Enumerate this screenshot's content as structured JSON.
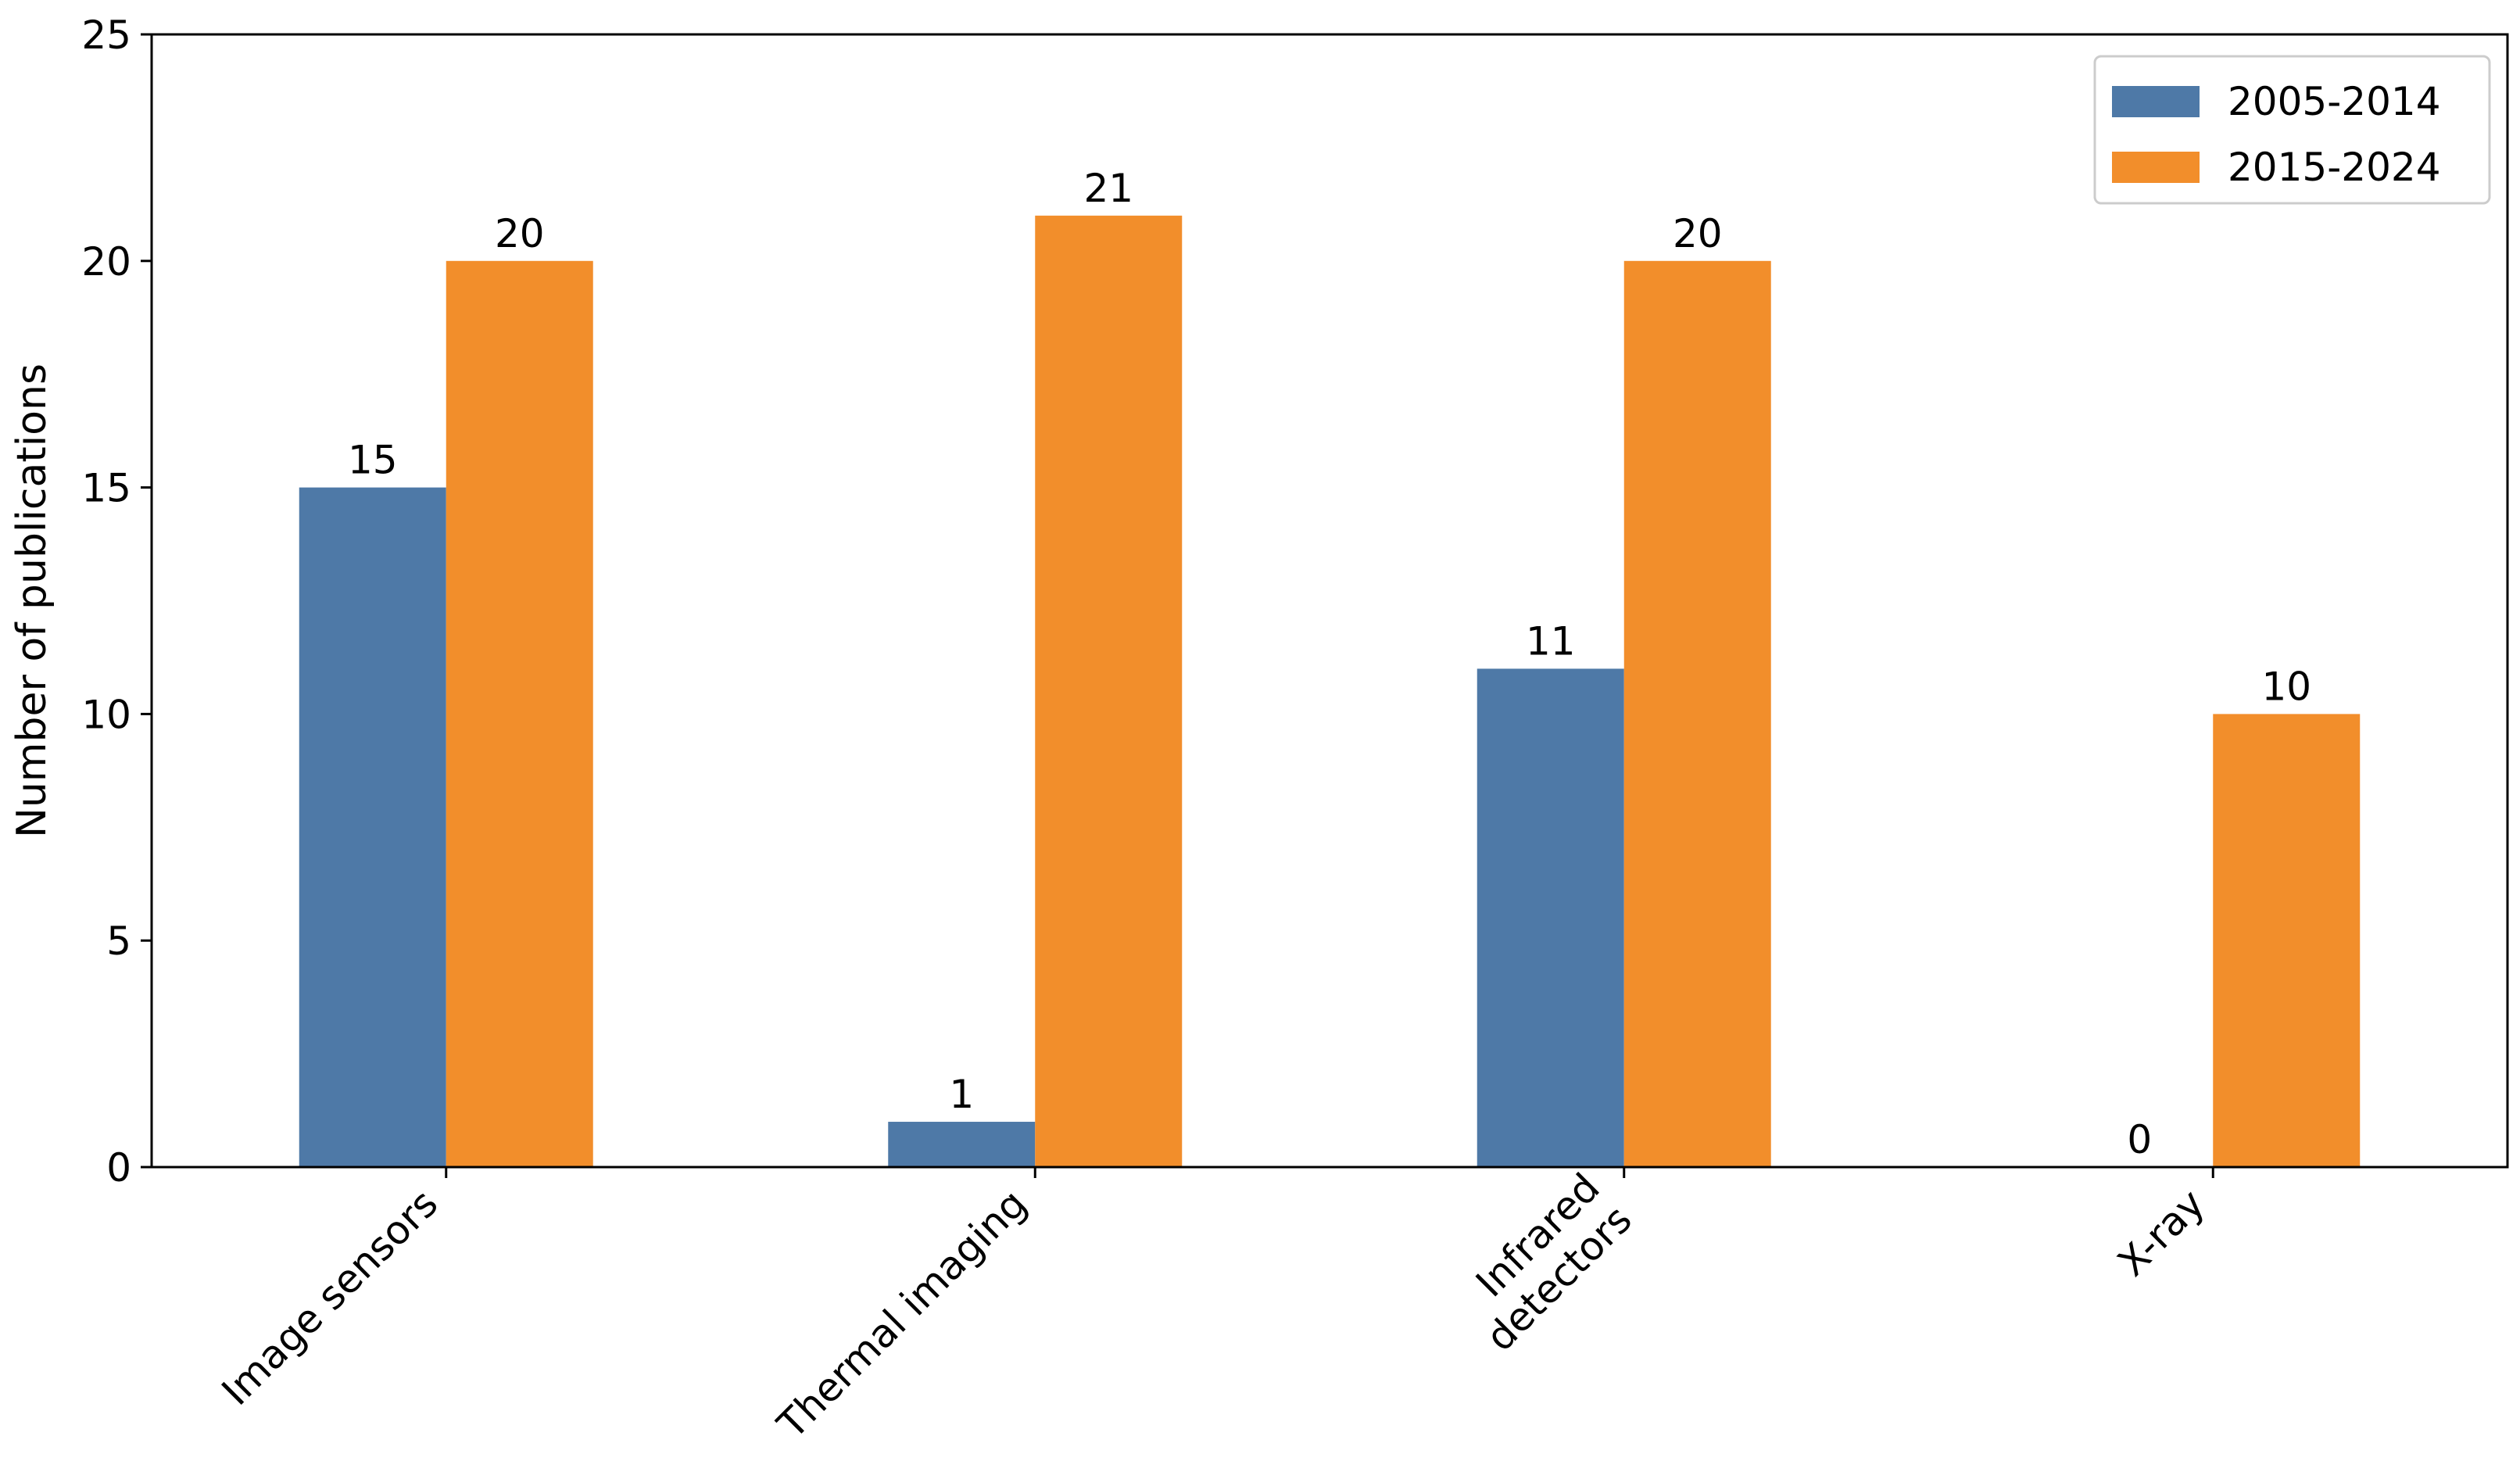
{
  "chart_data": {
    "type": "bar",
    "title": "",
    "xlabel": "",
    "ylabel": "Number of publications",
    "categories": [
      [
        "Image sensors"
      ],
      [
        "Thermal imaging"
      ],
      [
        "Infrared",
        "detectors"
      ],
      [
        "X-ray"
      ]
    ],
    "series": [
      {
        "name": "2005-2014",
        "color": "#4e79a7",
        "values": [
          15,
          1,
          11,
          0
        ]
      },
      {
        "name": "2015-2024",
        "color": "#f28e2b",
        "values": [
          20,
          21,
          20,
          10
        ]
      }
    ],
    "ylim": [
      0,
      25
    ],
    "yticks": [
      0,
      5,
      10,
      15,
      20,
      25
    ],
    "grid": false,
    "legend_position": "top-right",
    "data_labels": true
  }
}
